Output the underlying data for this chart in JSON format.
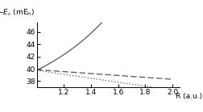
{
  "xlabel": "R (a.u.)",
  "xlim": [
    1.0,
    2.05
  ],
  "ylim": [
    37.0,
    47.5
  ],
  "yticks": [
    38,
    40,
    42,
    44,
    46
  ],
  "xticks": [
    1.2,
    1.4,
    1.6,
    1.8,
    2.0
  ],
  "background_color": "#ffffff",
  "line_color": "#555555",
  "x_start": 1.0,
  "x_end": 2.0,
  "n_points": 300,
  "exact_A": 7.0,
  "exact_B": 1.55,
  "exact_y0": 39.75,
  "g3s_y0": 39.85,
  "g3s_slope": -1.55,
  "lyp_y0": 39.75,
  "lyp_slope": -3.2
}
